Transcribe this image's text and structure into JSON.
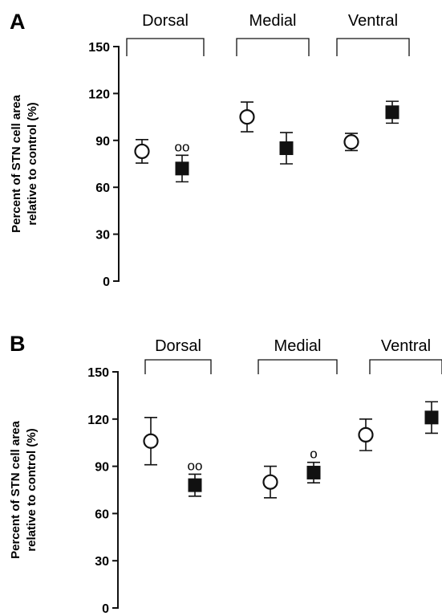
{
  "chart_data": [
    {
      "type": "scatter",
      "panel": "A",
      "ylabel": "Percent of STN cell area relative to control (%)",
      "ylabel_lines": [
        "Percent of STN cell area",
        "relative to control (%)"
      ],
      "ylim": [
        0,
        150
      ],
      "yticks": [
        0,
        30,
        60,
        90,
        120,
        150
      ],
      "groups": [
        "Dorsal",
        "Medial",
        "Ventral"
      ],
      "series": [
        {
          "marker": "open-circle",
          "means": [
            83,
            105,
            89
          ],
          "errors": [
            7.5,
            9.5,
            5.5
          ]
        },
        {
          "marker": "filled-square",
          "means": [
            72,
            85,
            108
          ],
          "errors": [
            8.5,
            10,
            7
          ]
        }
      ],
      "annotations": [
        {
          "group": "Dorsal",
          "series": 1,
          "text": "oo"
        }
      ]
    },
    {
      "type": "scatter",
      "panel": "B",
      "ylabel": "Percent of STN cell area relative to control (%)",
      "ylabel_lines": [
        "Percent of STN cell area",
        "relative to control (%)"
      ],
      "ylim": [
        0,
        150
      ],
      "yticks": [
        0,
        30,
        60,
        90,
        120,
        150
      ],
      "groups": [
        "Dorsal",
        "Medial",
        "Ventral"
      ],
      "series": [
        {
          "marker": "open-circle",
          "means": [
            106,
            80,
            110
          ],
          "errors": [
            15,
            10,
            10
          ]
        },
        {
          "marker": "filled-square",
          "means": [
            78,
            86,
            121
          ],
          "errors": [
            7,
            6.5,
            10
          ]
        }
      ],
      "annotations": [
        {
          "group": "Dorsal",
          "series": 1,
          "text": "oo"
        },
        {
          "group": "Medial",
          "series": 1,
          "text": "o"
        }
      ]
    }
  ]
}
